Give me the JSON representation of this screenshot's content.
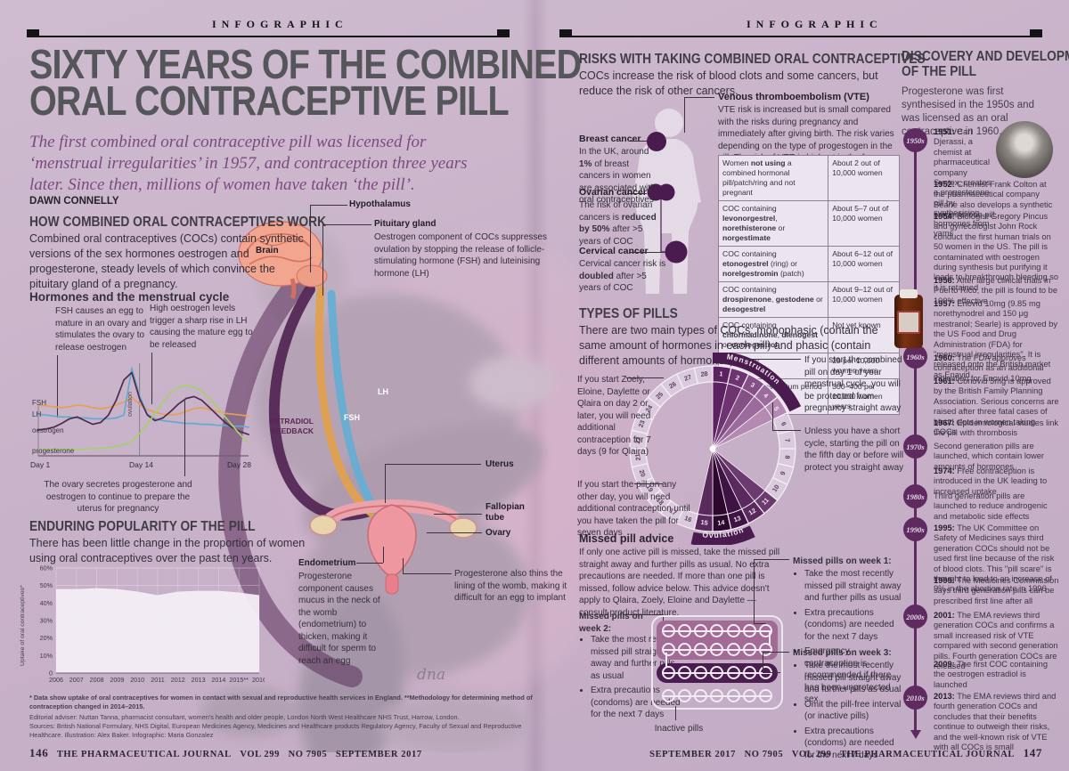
{
  "kicker": "INFOGRAPHIC",
  "left": {
    "title1": "SIXTY YEARS OF THE COMBINED",
    "title2": "ORAL CONTRACEPTIVE PILL",
    "intro": "The first combined oral contraceptive pill was licensed for ‘menstrual irregularities’ in 1957, and contraception three years later. Since then, millions of women have taken ‘the pill’.",
    "byline": "DAWN CONNELLY",
    "how_heading": "HOW COMBINED ORAL CONTRACEPTIVES WORK",
    "how_body": "Combined oral contraceptives (COCs) contain synthetic versions of the sex hormones oestrogen and progesterone, steady levels of which convince the pituitary gland of a pregnancy.",
    "cycle_heading": "Hormones and the menstrual cycle",
    "callout_fsh": "FSH causes an egg to mature in an ovary and stimulates the ovary to release oestrogen",
    "callout_lh": "High oestrogen levels trigger a sharp rise in LH causing the mature egg to be released",
    "callout_luteal": "The ovary secretes progesterone and oestrogen to continue to prepare the uterus for pregnancy",
    "legend": {
      "fsh": "FSH",
      "lh": "LH",
      "oestrogen": "oestrogen",
      "progesterone": "progesterone"
    },
    "ovulation_label": "ovulation",
    "xticks": {
      "d1": "Day 1",
      "d14": "Day 14",
      "d28": "Day 28"
    },
    "pop_heading": "ENDURING POPULARITY OF THE PILL",
    "pop_body": "There has been little change in the proportion of women using oral contraceptives over the past ten years.",
    "pop_ylabel": "Uptake of oral contraceptives*",
    "footnote": "* Data show uptake of oral contraceptives for women in contact with sexual and reproductive health services in England. **Methodology for determining method of contraception changed in 2014–2015.",
    "credits1": "Editorial adviser: Nuttan Tanna, pharmacist consultant, women's health and older people, London North West Healthcare NHS Trust, Harrow, London.",
    "credits2": "Sources: British National Formulary, NHS Digital, European Medicines Agency, Medicines and Healthcare products Regulatory Agency, Faculty of Sexual and Reproductive",
    "credits3": "Healthcare.  Illustration: Alex Baker.  Infographic: Maria Gonzalez",
    "footer": {
      "page": "146",
      "journal": "THE PHARMACEUTICAL JOURNAL",
      "vol": "VOL 299",
      "no": "NO 7905",
      "date": "SEPTEMBER 2017"
    },
    "anatomy": {
      "brain": "Brain",
      "hypothalamus": "Hypothalamus",
      "pituitary": "Pituitary gland",
      "pituitary_text": "Oestrogen component of COCs suppresses ovulation by stopping the release of follicle-stimulating hormone (FSH) and luteinising hormone (LH)",
      "estradiol": "ESTRADIOL FEEDBACK",
      "lh": "LH",
      "fsh": "FSH",
      "uterus": "Uterus",
      "fallopian": "Fallopian tube",
      "ovary": "Ovary",
      "endometrium": "Endometrium",
      "endometrium_text": "Progesterone component causes mucus in the neck of the womb (endometrium) to thicken, making it difficult for sperm to reach an egg",
      "progesterone_text": "Progesterone also thins the lining of the womb, making it difficult for an egg to implant",
      "signature": "dna"
    }
  },
  "right": {
    "risks": {
      "heading": "RISKS WITH TAKING COMBINED ORAL CONTRACEPTIVES",
      "body": "COCs increase the risk of blood clots and some cancers, but reduce the risk of other cancers.",
      "breast_title": "Breast cancer",
      "breast_text": "In the UK, around **1%** of breast cancers in women are associated with oral contraceptives",
      "ovarian_title": "Ovarian cancer",
      "ovarian_text": "The risk of ovarian cancers is **reduced by 50%** after >5 years of COC",
      "cervical_title": "Cervical cancer",
      "cervical_text": "Cervical cancer risk is **doubled** after >5 years of COC",
      "vte_title": "Venous thromboembolism (VTE)",
      "vte_body": "VTE risk is increased but is small compared with the risks during pregnancy and immediately after giving birth. The risk varies depending on the type of progestogen in the pill. The risk of VTE is highest in the four months following initiation of COCs",
      "table": [
        {
          "group": "Women **not using** a combined hormonal pill/patch/ring and not pregnant",
          "rate": "About 2 out of 10,000 women"
        },
        {
          "group": "COC containing **levonorgestrel**, **norethisterone** or **norgestimate**",
          "rate": "About 5–7 out of 10,000 women"
        },
        {
          "group": "COC containing **etonogestrel** (ring) or **norelgestromin** (patch)",
          "rate": "About 6–12 out of 10,000 women"
        },
        {
          "group": "COC containing **drospirenone**, **gestodene** or **desogestrel**",
          "rate": "About 9–12 out of 10,000 women"
        },
        {
          "group": "COC containing **chlormadinone**, **dienogest** or **nomegestrol**",
          "rate": "Not yet known"
        },
        {
          "group": "Pregnancy",
          "rate": "29 per 10,000 women years"
        },
        {
          "group": "Immediate postpartum period",
          "rate": "300–400 per 10,000 women years"
        }
      ]
    },
    "types": {
      "heading": "TYPES OF PILLS",
      "body": "There are two main types of COCs: monophasic (contain the same amount of hormones in each pill) and phasic (contain different amounts of hormones).",
      "ann_day1": "If you start the combined pill on day 1 of your menstrual cycle, you will be protected from pregnancy straight away",
      "ann_short": "Unless you have a short cycle, starting the pill on the fifth day or before will protect you straight away",
      "ann_zoely": "If you start Zoely, Eloine, Daylette or Qlaira on day 2 or later, you will need additional contraception for 7 days (9 for Qlaira)",
      "ann_other": "If you start the pill on any other day, you will need additional contraception until you have taken the pill for seven days",
      "wheel": {
        "days": 28,
        "menstruation_label": "Menstruation",
        "ovulation_label": "Ovulation",
        "menstruation_band_days": [
          1,
          5
        ],
        "ovulation_band_days": [
          13,
          15
        ],
        "shaded_days": {
          "1": "#5c2160",
          "2": "#6f3372",
          "3": "#855086",
          "4": "#9c6b9d",
          "5": "#b48ab2",
          "11": "#6b3a6e",
          "12": "#5a2a5e",
          "13": "#3f1343",
          "14": "#2c082f",
          "15": "#5a2a5e"
        },
        "band_color": "#4a1b4e"
      }
    },
    "missed": {
      "heading": "Missed pill advice",
      "body": "If only one active pill is missed, take the missed pill straight away and further pills as usual. No extra precautions are needed. If more than one pill is missed, follow advice below. This advice doesn't apply to Qlaira, Zoely, Eloine and Daylette — consult product literature.",
      "week2_title": "Missed pills on week 2:",
      "week2_bullets": [
        "Take the most recently missed pill straight away and further pills as usual",
        "Extra precautions (condoms) are needed for the next 7 days"
      ],
      "week1_title": "Missed pills on week 1:",
      "week1_bullets": [
        "Take the most recently missed pill straight away and further pills as usual",
        "Extra precautions (condoms) are needed for the next 7 days",
        "Emergency contraception is recommended if there has been unprotected sex"
      ],
      "week3_title": "Missed pills on week 3:",
      "week3_bullets": [
        "Take the most recently missed pill straight away and further pills as usual",
        "Omit the pill-free interval (or inactive pills)",
        "Extra precautions (condoms) are needed for the next 7 days"
      ],
      "inactive_label": "Inactive pills",
      "pack": {
        "rows": 4,
        "cols": 7
      }
    },
    "footer": {
      "date": "SEPTEMBER 2017",
      "no": "NO 7905",
      "vol": "VOL 299",
      "journal": "THE PHARMACEUTICAL JOURNAL",
      "page": "147"
    }
  },
  "timeline": {
    "heading1": "DISCOVERY AND DEVELOPMENT",
    "heading2": "OF THE PILL",
    "intro": "Progesterone was first synthesised in the 1950s and was licensed as an oral contraceptive in 1960.",
    "badges": [
      "1950s",
      "1960s",
      "1970s",
      "1980s",
      "1990s",
      "2000s",
      "2010s"
    ],
    "entries": [
      "**1951:** Carl Djerassi, a chemist at pharmaceutical company Syntex, creates a progesterone pill by synthesising hormones from yams",
      "**1952:** Chemist Frank Colton at the pharmaceutical company Searle also develops a synthetic progesterone pill",
      "**1954:** Biologist Gregory Pincus and gynecologist John Rock conduct the first human trials on 50 women in the US. The pill is contaminated with oestrogen during synthesis but purifying it leads to breakthrough bleeding so it is retained",
      "**1956:** After large clinical trials in Puerto Rico, the pill is found to be 100% effective",
      "**1957:** Enovid 10mg (9.85 mg norethynodrel and 150 μg mestranol; Searle) is approved by the US Food and Drug Administration (FDA) for \"menstrual irregularities\". It is released onto the British market as Enavid",
      "**1960:** The FDA approves contraception as an additional indication for Enovid 10mg",
      "**1961:** Conovid 5mg is approved by the British Family Planning Association. Serious concerns are raised after three fatal cases of blood clots in women taking COCs",
      "**1967:** Epidemiological studies link the pill with thrombosis",
      "Second generation pills are launched, which contain lower amounts of hormones",
      "**1974:** Free contraception is introduced in the UK leading to increased uptake",
      "Third generation pills are launched to reduce androgenic and metabolic side effects",
      "**1995:** The UK Committee on Safety of Medicines says third generation COCs should not be used first line because of the risk of blood clots. This \"pill scare\" is thought to lead to an increase of 9% in the abortion rate in 1996",
      "**1999:** The Medicines Commission says third generation pills can be prescribed first line after all",
      "**2001:** The EMA reviews third generation COCs and confirms a small increased risk of VTE compared with second generation pills. Fourth generation COCs are released",
      "**2009:** The first COC containing the oestrogen estradiol is launched",
      "**2013:** The EMA reviews third and fourth generation COCs and concludes that their benefits continue to outweigh their risks, and the well-known risk of VTE with all COCs is small"
    ]
  },
  "chart_data": [
    {
      "type": "line",
      "title": "Hormones and the menstrual cycle",
      "x": [
        1,
        2,
        3,
        4,
        5,
        6,
        7,
        8,
        9,
        10,
        11,
        12,
        13,
        14,
        15,
        16,
        17,
        18,
        19,
        20,
        21,
        22,
        23,
        24,
        25,
        26,
        27,
        28
      ],
      "series": [
        {
          "name": "FSH",
          "color": "#e5a054",
          "values": [
            55,
            54,
            53,
            52,
            53,
            55,
            54,
            52,
            51,
            52,
            55,
            58,
            63,
            56,
            50,
            47,
            45,
            44,
            45,
            48,
            51,
            52,
            50,
            48,
            46,
            45,
            44,
            43
          ]
        },
        {
          "name": "LH",
          "color": "#64aacf",
          "values": [
            45,
            44,
            43,
            42,
            42,
            41,
            41,
            40,
            40,
            40,
            41,
            44,
            95,
            65,
            45,
            40,
            38,
            37,
            36,
            35,
            35,
            34,
            34,
            33,
            33,
            32,
            32,
            31
          ]
        },
        {
          "name": "oestrogen",
          "color": "#4f2a4e",
          "values": [
            28,
            29,
            31,
            35,
            40,
            42,
            38,
            34,
            36,
            44,
            60,
            82,
            90,
            62,
            44,
            38,
            41,
            48,
            56,
            62,
            64,
            60,
            52,
            44,
            36,
            30,
            26,
            23
          ]
        },
        {
          "name": "progesterone",
          "color": "#a5d06a",
          "values": [
            7,
            7,
            7,
            7,
            7,
            7,
            7,
            8,
            8,
            9,
            10,
            12,
            16,
            24,
            34,
            46,
            58,
            68,
            74,
            76,
            74,
            70,
            62,
            52,
            42,
            32,
            22,
            14
          ]
        }
      ],
      "xticks": [
        "Day 1",
        "Day 14",
        "Day 28"
      ],
      "annotations": [
        "ovulation at Day 14"
      ],
      "ylim": [
        0,
        100
      ],
      "grid": false
    },
    {
      "type": "area",
      "title": "Uptake of oral contraceptives over the past ten years",
      "categories": [
        "2006",
        "2007",
        "2008",
        "2009",
        "2010",
        "2011",
        "2012",
        "2013",
        "2014",
        "2015**",
        "2016"
      ],
      "values": [
        48,
        48,
        48.5,
        48,
        46.5,
        44.5,
        46.5,
        47,
        47,
        46,
        44.5
      ],
      "ylabel": "Uptake of oral contraceptives*",
      "ylim": [
        0,
        60
      ],
      "yticks": [
        0,
        10,
        20,
        30,
        40,
        50,
        60
      ],
      "fill": "#f4eef5",
      "legend_position": "none"
    }
  ]
}
